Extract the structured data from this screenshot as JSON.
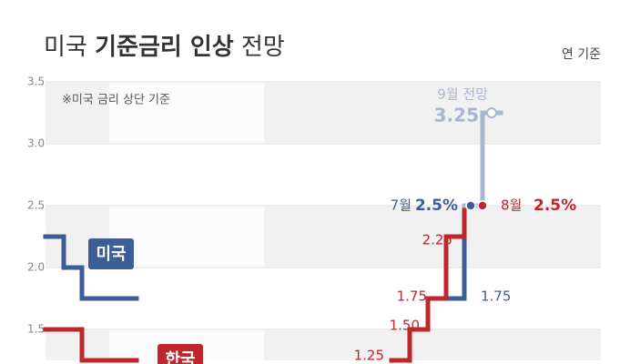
{
  "chart_data": {
    "type": "step",
    "title": {
      "lead": "미국",
      "bold": "기준금리 인상",
      "tail": "전망"
    },
    "subtitle": "연 기준",
    "note": "※미국 금리 상단 기준",
    "categories": [
      null,
      null,
      null,
      null,
      null,
      null,
      null,
      null,
      null,
      null,
      null,
      null,
      null,
      null,
      null,
      null,
      null,
      null,
      null,
      null,
      null,
      null,
      null,
      null,
      null
    ],
    "ylim": [
      1.25,
      3.5
    ],
    "yticks": [
      1.5,
      {
        "value": 2,
        "label": "2.0"
      },
      2.5,
      {
        "value": 3,
        "label": "3.0"
      },
      3.5
    ],
    "grid": true,
    "series": [
      {
        "name": "미국",
        "color": "#3d5d96",
        "values": [
          2.25,
          2.0,
          1.75,
          1.75,
          1.75,
          null,
          null,
          null,
          null,
          null,
          null,
          null,
          null,
          null,
          null,
          null,
          null,
          null,
          null,
          null,
          null,
          null,
          1.75,
          2.5,
          null
        ]
      },
      {
        "name": "한국",
        "color": "#c0262d",
        "values": [
          1.5,
          1.5,
          1.25,
          1.25,
          1.25,
          null,
          null,
          null,
          null,
          null,
          null,
          null,
          null,
          null,
          null,
          null,
          null,
          null,
          null,
          1.25,
          1.5,
          1.75,
          2.25,
          2.5,
          null
        ]
      },
      {
        "color": "#aab5cf",
        "values": [
          null,
          null,
          null,
          null,
          null,
          null,
          null,
          null,
          null,
          null,
          null,
          null,
          null,
          null,
          null,
          null,
          null,
          null,
          null,
          null,
          null,
          null,
          null,
          2.5,
          3.25
        ]
      }
    ],
    "annotations": [
      {
        "text": "9월 전망",
        "color": "#aab5cf"
      },
      {
        "text": "3.25",
        "color": "#aab5cf"
      },
      {
        "text": "7월",
        "color": "#3d5d96"
      },
      {
        "text": "2.5%",
        "color": "#3d5d96"
      },
      {
        "text": "8월",
        "color": "#c0262d"
      },
      {
        "text": "2.5%",
        "color": "#c0262d"
      },
      {
        "text": "2.25",
        "color": "#c0262d"
      },
      {
        "text": "1.75",
        "color": "#c0262d"
      },
      {
        "text": "1.75",
        "color": "#3d5d96"
      },
      {
        "text": "1.50",
        "color": "#c0262d"
      },
      {
        "text": "1.25",
        "color": "#c0262d"
      }
    ]
  }
}
